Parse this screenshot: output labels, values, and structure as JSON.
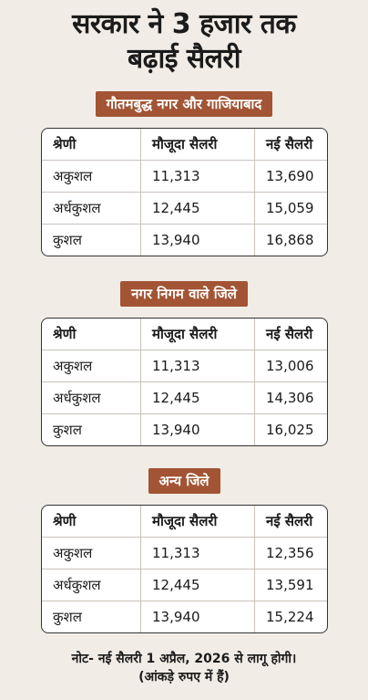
{
  "headline": {
    "line1": "सरकार ने 3 हजार तक",
    "line2": "बढ़ाई सैलरी"
  },
  "columns": [
    "श्रेणी",
    "मौजूदा सैलरी",
    "नई सैलरी"
  ],
  "sections": [
    {
      "tag": "गौतमबुद्ध नगर और गाजियाबाद",
      "rows": [
        [
          "अकुशल",
          "11,313",
          "13,690"
        ],
        [
          "अर्धकुशल",
          "12,445",
          "15,059"
        ],
        [
          "कुशल",
          "13,940",
          "16,868"
        ]
      ]
    },
    {
      "tag": "नगर निगम वाले जिले",
      "rows": [
        [
          "अकुशल",
          "11,313",
          "13,006"
        ],
        [
          "अर्धकुशल",
          "12,445",
          "14,306"
        ],
        [
          "कुशल",
          "13,940",
          "16,025"
        ]
      ]
    },
    {
      "tag": "अन्य जिले",
      "rows": [
        [
          "अकुशल",
          "11,313",
          "12,356"
        ],
        [
          "अर्धकुशल",
          "12,445",
          "13,591"
        ],
        [
          "कुशल",
          "13,940",
          "15,224"
        ]
      ]
    }
  ],
  "note": {
    "line1": "नोट- नई सैलरी 1 अप्रैल, 2026 से लागू होगी।",
    "line2": "(आंकड़े रुपए में हैं)"
  },
  "colors": {
    "tag_bg": "#a25434",
    "page_bg": "#f1ece6"
  }
}
